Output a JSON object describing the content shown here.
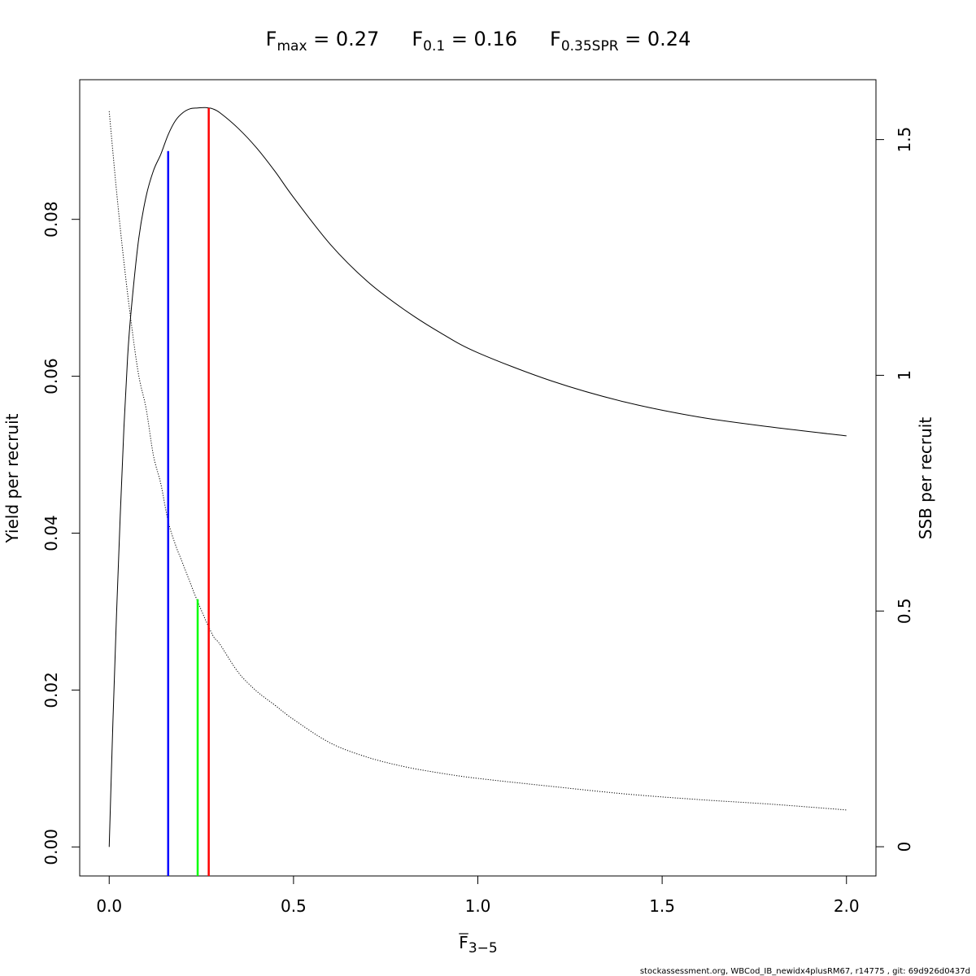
{
  "title": {
    "fmax": {
      "main": "F",
      "sub": "max",
      "value": " = 0.27"
    },
    "f01": {
      "main": "F",
      "sub": "0.1",
      "value": " = 0.16"
    },
    "fspr": {
      "main": "F",
      "sub": "0.35SPR",
      "value": " = 0.24"
    }
  },
  "footer": "stockassessment.org, WBCod_IB_newidx4plusRM67, r14775 , git: 69d926d0437d",
  "chart_data": {
    "type": "line",
    "xlabel": {
      "main": "F",
      "sub": "3−5",
      "overline": true
    },
    "ylabel": "Yield per recruit",
    "y2label": "SSB per recruit",
    "xlim": [
      -0.08,
      2.08
    ],
    "ylim": [
      -0.0037,
      0.0978
    ],
    "y2lim": [
      -0.062,
      1.627
    ],
    "x_ticks": [
      "0.0",
      "0.5",
      "1.0",
      "1.5",
      "2.0"
    ],
    "y_ticks": [
      "0.00",
      "0.02",
      "0.04",
      "0.06",
      "0.08"
    ],
    "y2_ticks": [
      "0",
      "0.5",
      "1",
      "1.5"
    ],
    "series": [
      {
        "axis": "left",
        "style": "solid",
        "color": "#000000",
        "x": [
          0,
          0.01,
          0.02,
          0.03,
          0.04,
          0.05,
          0.06,
          0.08,
          0.1,
          0.12,
          0.14,
          0.16,
          0.18,
          0.2,
          0.22,
          0.24,
          0.26,
          0.27,
          0.28,
          0.3,
          0.35,
          0.4,
          0.45,
          0.5,
          0.6,
          0.7,
          0.8,
          0.9,
          1.0,
          1.2,
          1.4,
          1.6,
          1.8,
          2.0
        ],
        "y": [
          0,
          0.0158,
          0.0298,
          0.0423,
          0.0535,
          0.0625,
          0.0686,
          0.0775,
          0.0829,
          0.0862,
          0.0883,
          0.0908,
          0.0926,
          0.0936,
          0.0941,
          0.0942,
          0.09425,
          0.0942,
          0.0941,
          0.0936,
          0.0916,
          0.0891,
          0.0861,
          0.0828,
          0.0768,
          0.0721,
          0.0685,
          0.0655,
          0.063,
          0.0594,
          0.0567,
          0.0548,
          0.0535,
          0.0524
        ]
      },
      {
        "axis": "right",
        "style": "dotted",
        "color": "#000000",
        "x": [
          0,
          0.02,
          0.04,
          0.06,
          0.08,
          0.1,
          0.12,
          0.14,
          0.16,
          0.18,
          0.2,
          0.24,
          0.28,
          0.3,
          0.35,
          0.4,
          0.45,
          0.5,
          0.6,
          0.7,
          0.8,
          0.9,
          1.0,
          1.2,
          1.4,
          1.6,
          1.8,
          2.0
        ],
        "y": [
          1.56,
          1.39,
          1.24,
          1.11,
          1.0,
          0.93,
          0.83,
          0.77,
          0.69,
          0.64,
          0.6,
          0.52,
          0.45,
          0.43,
          0.37,
          0.33,
          0.3,
          0.27,
          0.22,
          0.19,
          0.17,
          0.156,
          0.145,
          0.128,
          0.112,
          0.1,
          0.09,
          0.078
        ]
      }
    ],
    "reference_lines": [
      {
        "label": "F0.1",
        "x": 0.16,
        "y_top": 0.0887,
        "axis": "left",
        "color": "#0000ff"
      },
      {
        "label": "F0.35SPR",
        "x": 0.24,
        "y_top": 0.525,
        "axis": "right",
        "color": "#00ff00"
      },
      {
        "label": "Fmax",
        "x": 0.27,
        "y_top": 0.0942,
        "axis": "left",
        "color": "#ff0000"
      }
    ]
  }
}
